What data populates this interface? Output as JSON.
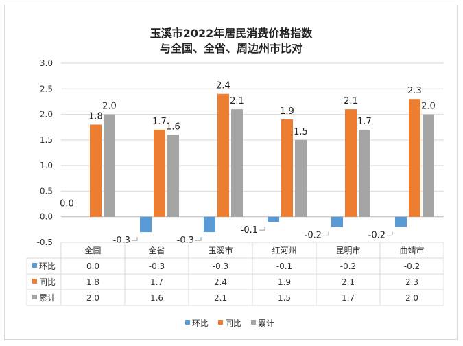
{
  "chart_data": {
    "type": "bar",
    "title_lines": [
      "玉溪市2022年居民消费价格指数",
      "与全国、全省、周边州市比对"
    ],
    "categories": [
      "全国",
      "全省",
      "玉溪市",
      "红河州",
      "昆明市",
      "曲靖市"
    ],
    "series": [
      {
        "name": "环比",
        "color": "#5B9BD5",
        "values": [
          0.0,
          -0.3,
          -0.3,
          -0.1,
          -0.2,
          -0.2
        ],
        "labels": [
          "0.0",
          "-0.3",
          "-0.3",
          "-0.1",
          "-0.2",
          "-0.2"
        ]
      },
      {
        "name": "同比",
        "color": "#ED7D31",
        "values": [
          1.8,
          1.7,
          2.4,
          1.9,
          2.1,
          2.3
        ],
        "labels": [
          "1.8",
          "1.7",
          "2.4",
          "1.9",
          "2.1",
          "2.3"
        ]
      },
      {
        "name": "累计",
        "color": "#A5A5A5",
        "values": [
          2.0,
          1.6,
          2.1,
          1.5,
          1.7,
          2.0
        ],
        "labels": [
          "2.0",
          "1.6",
          "2.1",
          "1.5",
          "1.7",
          "2.0"
        ]
      }
    ],
    "y_ticks": [
      "3.0",
      "2.5",
      "2.0",
      "1.5",
      "1.0",
      "0.5",
      "0.0",
      "-0.5"
    ],
    "ylim": [
      -0.5,
      3.0
    ],
    "grid": true,
    "legend_position": "bottom",
    "data_table": true
  }
}
